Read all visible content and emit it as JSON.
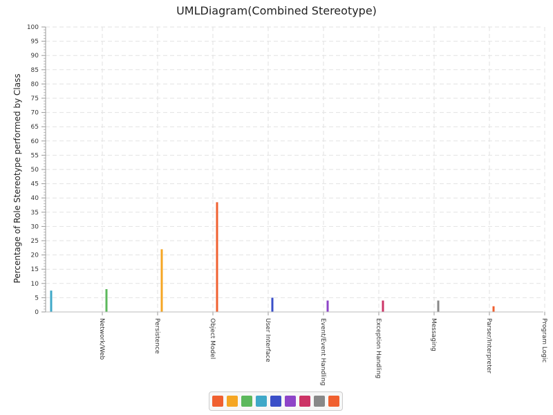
{
  "chart_data": {
    "type": "bar",
    "title": "UMLDiagram(Combined Stereotype)",
    "xlabel": "",
    "ylabel": "Percentage of Role Stereotype performed by Class",
    "ylim": [
      0,
      100
    ],
    "yticks": [
      0,
      5,
      10,
      15,
      20,
      25,
      30,
      35,
      40,
      45,
      50,
      55,
      60,
      65,
      70,
      75,
      80,
      85,
      90,
      95,
      100
    ],
    "grid": true,
    "legend_placement": "bottom",
    "categories": [
      "Network/Web",
      "Persistence",
      "Object Model",
      "User Interface",
      "Event/Event Handling",
      "Exception Handling",
      "Messaging",
      "Parser/Interpreter",
      "Program Logic"
    ],
    "values": [
      7.5,
      8,
      22,
      38.5,
      5,
      4,
      4,
      4,
      2
    ],
    "colors": [
      "#3fa8c8",
      "#5cb85c",
      "#f5a623",
      "#f06030",
      "#3a4fc8",
      "#8e44c8",
      "#cc3366",
      "#888888",
      "#f06030"
    ],
    "legend_colors": [
      "#f06030",
      "#f5a623",
      "#5cb85c",
      "#3fa8c8",
      "#3a4fc8",
      "#8e44c8",
      "#cc3366",
      "#888888",
      "#f06030"
    ]
  }
}
